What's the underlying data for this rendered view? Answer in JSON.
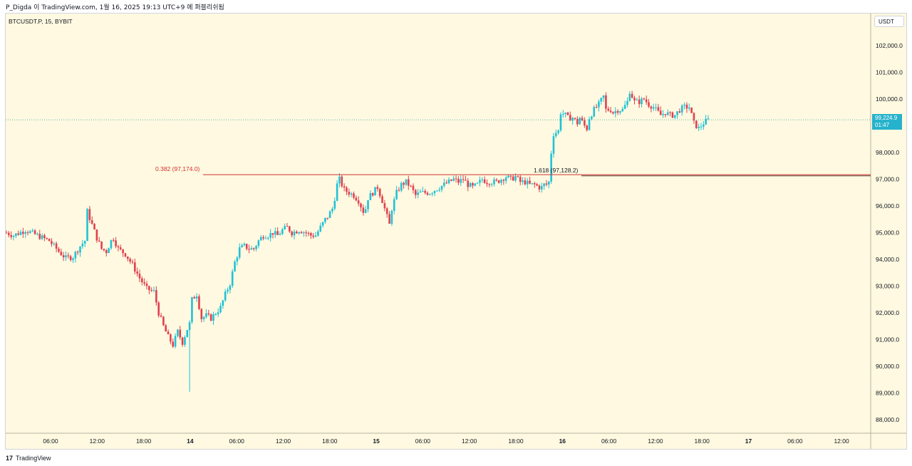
{
  "header": {
    "author_line": "P_Digda 이 TradingView.com, 1월 16, 2025 19:13 UTC+9 에 퍼블리쉬됨"
  },
  "symbol": {
    "label": "BTCUSDT.P, 15, BYBIT"
  },
  "currency_button": {
    "label": "USDT"
  },
  "price_tag": {
    "price": "99,224.9",
    "countdown": "01:47"
  },
  "annotations": {
    "fib_left": "0.382 (97,174.0)",
    "fib_right": "1.618 (97,128.2)"
  },
  "footer": {
    "brand": "TradingView",
    "logo": "17"
  },
  "colors": {
    "up": "#26a69a",
    "up_bright": "#22c1d6",
    "down": "#e0404f",
    "bg": "#fef9e0",
    "fib_line": "#d32f2f",
    "price_tag": "#26b2cc"
  },
  "chart_data": {
    "type": "candlestick",
    "title": "BTCUSDT.P, 15, BYBIT",
    "ylim": [
      87500,
      103200
    ],
    "y_ticks": [
      "102,000.0",
      "101,000.0",
      "100,000.0",
      "99,000.0",
      "98,000.0",
      "97,000.0",
      "96,000.0",
      "95,000.0",
      "94,000.0",
      "93,000.0",
      "92,000.0",
      "91,000.0",
      "90,000.0",
      "89,000.0",
      "88,000.0"
    ],
    "x_ticks": [
      "06:00",
      "12:00",
      "18:00",
      "14",
      "06:00",
      "12:00",
      "18:00",
      "15",
      "06:00",
      "12:00",
      "18:00",
      "16",
      "06:00",
      "12:00",
      "18:00",
      "17",
      "06:00",
      "12:00"
    ],
    "last_price": 99224.9,
    "fib_levels": [
      {
        "label": "0.382 (97,174.0)",
        "value": 97174.0
      },
      {
        "label": "1.618 (97,128.2)",
        "value": 97128.2
      }
    ],
    "price_path": [
      [
        0,
        95000
      ],
      [
        3,
        94900
      ],
      [
        8,
        95100
      ],
      [
        13,
        94900
      ],
      [
        18,
        94700
      ],
      [
        22,
        94300
      ],
      [
        25,
        94050
      ],
      [
        28,
        94100
      ],
      [
        31,
        94500
      ],
      [
        33,
        94700
      ],
      [
        34,
        95800
      ],
      [
        36,
        95300
      ],
      [
        38,
        94800
      ],
      [
        40,
        94400
      ],
      [
        42,
        94300
      ],
      [
        44,
        94700
      ],
      [
        45,
        94800
      ],
      [
        47,
        94400
      ],
      [
        50,
        94200
      ],
      [
        53,
        93800
      ],
      [
        56,
        93300
      ],
      [
        59,
        92900
      ],
      [
        62,
        92800
      ],
      [
        64,
        92000
      ],
      [
        66,
        91500
      ],
      [
        68,
        91100
      ],
      [
        70,
        90800
      ],
      [
        72,
        91300
      ],
      [
        74,
        90900
      ],
      [
        76,
        91400
      ],
      [
        77,
        91600
      ],
      [
        78,
        92500
      ],
      [
        80,
        92700
      ],
      [
        82,
        91800
      ],
      [
        84,
        91900
      ],
      [
        86,
        91800
      ],
      [
        88,
        92000
      ],
      [
        90,
        92200
      ],
      [
        92,
        92700
      ],
      [
        94,
        93100
      ],
      [
        96,
        93900
      ],
      [
        98,
        94400
      ],
      [
        100,
        94500
      ],
      [
        102,
        94400
      ],
      [
        104,
        94400
      ],
      [
        106,
        94700
      ],
      [
        108,
        94900
      ],
      [
        110,
        94900
      ],
      [
        112,
        95000
      ],
      [
        114,
        94900
      ],
      [
        116,
        95100
      ],
      [
        118,
        95200
      ],
      [
        120,
        95000
      ],
      [
        123,
        95100
      ],
      [
        126,
        95000
      ],
      [
        128,
        94900
      ],
      [
        130,
        94900
      ],
      [
        132,
        95200
      ],
      [
        134,
        95500
      ],
      [
        135,
        95600
      ],
      [
        137,
        95900
      ],
      [
        138,
        96300
      ],
      [
        139,
        96800
      ],
      [
        140,
        97000
      ],
      [
        142,
        96600
      ],
      [
        144,
        96500
      ],
      [
        146,
        96400
      ],
      [
        148,
        96200
      ],
      [
        150,
        95800
      ],
      [
        151,
        95900
      ],
      [
        152,
        96300
      ],
      [
        154,
        96500
      ],
      [
        156,
        96700
      ],
      [
        158,
        96200
      ],
      [
        160,
        95600
      ],
      [
        161,
        95300
      ],
      [
        162,
        95900
      ],
      [
        164,
        96500
      ],
      [
        166,
        96800
      ],
      [
        168,
        96900
      ],
      [
        170,
        96700
      ],
      [
        172,
        96400
      ],
      [
        174,
        96500
      ],
      [
        176,
        96500
      ],
      [
        178,
        96500
      ],
      [
        180,
        96600
      ],
      [
        182,
        96700
      ],
      [
        184,
        96800
      ],
      [
        186,
        96900
      ],
      [
        188,
        97000
      ],
      [
        190,
        96900
      ],
      [
        192,
        97000
      ],
      [
        194,
        96800
      ],
      [
        196,
        96700
      ],
      [
        198,
        96800
      ],
      [
        200,
        97000
      ],
      [
        202,
        96900
      ],
      [
        204,
        96900
      ],
      [
        206,
        96900
      ],
      [
        208,
        97000
      ],
      [
        210,
        97100
      ],
      [
        212,
        97000
      ],
      [
        214,
        97100
      ],
      [
        216,
        96900
      ],
      [
        218,
        96900
      ],
      [
        220,
        96800
      ],
      [
        222,
        96800
      ],
      [
        224,
        96700
      ],
      [
        225,
        96700
      ],
      [
        226,
        96800
      ],
      [
        227,
        96800
      ],
      [
        228,
        96900
      ],
      [
        229,
        98000
      ],
      [
        230,
        98700
      ],
      [
        232,
        98800
      ],
      [
        233,
        99500
      ],
      [
        235,
        99400
      ],
      [
        236,
        99300
      ],
      [
        238,
        99300
      ],
      [
        240,
        99100
      ],
      [
        241,
        99300
      ],
      [
        243,
        99000
      ],
      [
        244,
        98900
      ],
      [
        245,
        99300
      ],
      [
        247,
        99600
      ],
      [
        249,
        99800
      ],
      [
        251,
        100100
      ],
      [
        252,
        99600
      ],
      [
        254,
        99600
      ],
      [
        255,
        99500
      ],
      [
        257,
        99600
      ],
      [
        259,
        99600
      ],
      [
        261,
        99900
      ],
      [
        262,
        100300
      ],
      [
        264,
        99900
      ],
      [
        266,
        99900
      ],
      [
        268,
        100000
      ],
      [
        270,
        99800
      ],
      [
        272,
        99700
      ],
      [
        273,
        99600
      ],
      [
        275,
        99400
      ],
      [
        277,
        99500
      ],
      [
        279,
        99400
      ],
      [
        281,
        99400
      ],
      [
        283,
        99600
      ],
      [
        285,
        99700
      ],
      [
        287,
        99700
      ],
      [
        289,
        99100
      ],
      [
        291,
        98900
      ],
      [
        293,
        99100
      ],
      [
        295,
        99224.9
      ]
    ]
  }
}
